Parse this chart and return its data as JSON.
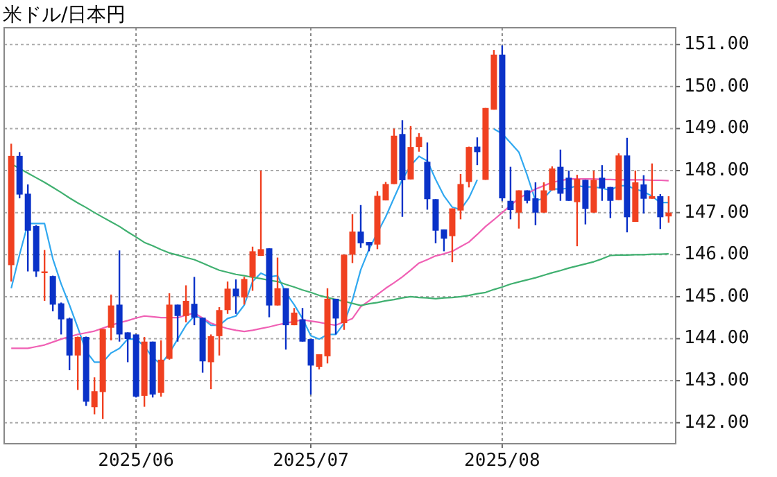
{
  "chart_data": {
    "type": "candlestick",
    "title": "米ドル/日本円",
    "categories": [
      null,
      null,
      null,
      null,
      null,
      null,
      null,
      null,
      null,
      null,
      null,
      null,
      null,
      null,
      null,
      "2025/06",
      null,
      null,
      null,
      null,
      null,
      null,
      null,
      null,
      null,
      null,
      null,
      null,
      null,
      null,
      null,
      null,
      null,
      null,
      null,
      null,
      "2025/07",
      null,
      null,
      null,
      null,
      null,
      null,
      null,
      null,
      null,
      null,
      null,
      null,
      null,
      null,
      null,
      null,
      null,
      null,
      null,
      null,
      null,
      null,
      "2025/08",
      null,
      null,
      null,
      null,
      null,
      null,
      null,
      null,
      null,
      null,
      null,
      null,
      null,
      null,
      null,
      null,
      null,
      null,
      null,
      null
    ],
    "ohlc": [
      [
        145.75,
        148.64,
        145.36,
        148.35
      ],
      [
        148.35,
        148.44,
        147.34,
        147.43
      ],
      [
        147.45,
        147.67,
        145.6,
        146.57
      ],
      [
        146.68,
        146.7,
        145.47,
        145.6
      ],
      [
        145.56,
        146.11,
        144.9,
        145.6
      ],
      [
        145.49,
        145.5,
        144.65,
        144.81
      ],
      [
        144.84,
        144.86,
        144.1,
        144.46
      ],
      [
        144.48,
        144.5,
        143.25,
        143.6
      ],
      [
        143.6,
        144.05,
        142.78,
        144.04
      ],
      [
        144.04,
        144.05,
        142.4,
        142.5
      ],
      [
        142.37,
        143.08,
        142.2,
        142.75
      ],
      [
        142.73,
        144.23,
        142.09,
        144.23
      ],
      [
        144.26,
        145.05,
        143.96,
        144.79
      ],
      [
        144.81,
        146.1,
        143.93,
        144.1
      ],
      [
        144.15,
        144.15,
        143.44,
        143.99
      ],
      [
        144.1,
        144.1,
        142.6,
        142.62
      ],
      [
        142.64,
        144.04,
        142.38,
        143.93
      ],
      [
        143.93,
        143.93,
        142.6,
        142.67
      ],
      [
        142.71,
        143.96,
        142.62,
        143.5
      ],
      [
        143.52,
        145.08,
        143.5,
        144.81
      ],
      [
        144.81,
        144.81,
        143.93,
        144.54
      ],
      [
        144.54,
        145.27,
        144.39,
        144.9
      ],
      [
        144.83,
        145.47,
        144.32,
        144.5
      ],
      [
        144.5,
        144.5,
        143.19,
        143.46
      ],
      [
        143.44,
        144.1,
        142.8,
        144.06
      ],
      [
        144.06,
        144.75,
        143.6,
        144.68
      ],
      [
        144.68,
        145.36,
        144.59,
        145.19
      ],
      [
        145.19,
        145.41,
        144.59,
        145.01
      ],
      [
        144.98,
        145.47,
        144.81,
        145.42
      ],
      [
        145.47,
        146.19,
        145.14,
        146.08
      ],
      [
        145.97,
        148.0,
        145.97,
        146.13
      ],
      [
        146.15,
        146.15,
        144.51,
        144.79
      ],
      [
        144.79,
        145.93,
        144.79,
        145.2
      ],
      [
        145.2,
        145.2,
        143.74,
        144.32
      ],
      [
        144.32,
        144.73,
        144.32,
        144.62
      ],
      [
        144.46,
        144.73,
        143.93,
        143.93
      ],
      [
        143.99,
        143.99,
        142.67,
        143.36
      ],
      [
        143.33,
        143.63,
        143.27,
        143.63
      ],
      [
        143.58,
        145.2,
        143.41,
        144.95
      ],
      [
        144.95,
        144.95,
        144.1,
        144.48
      ],
      [
        144.37,
        146.0,
        144.21,
        146.0
      ],
      [
        146.0,
        146.96,
        145.8,
        146.55
      ],
      [
        146.55,
        147.18,
        146.16,
        146.27
      ],
      [
        146.3,
        146.3,
        146.08,
        146.22
      ],
      [
        146.24,
        147.51,
        146.13,
        147.4
      ],
      [
        147.29,
        147.73,
        147.29,
        147.68
      ],
      [
        147.68,
        149.0,
        147.68,
        148.83
      ],
      [
        148.87,
        149.2,
        146.9,
        147.77
      ],
      [
        147.79,
        149.06,
        147.79,
        148.56
      ],
      [
        148.56,
        148.89,
        148.45,
        148.8
      ],
      [
        148.21,
        148.67,
        147.07,
        147.32
      ],
      [
        147.32,
        147.32,
        146.27,
        146.57
      ],
      [
        146.6,
        146.6,
        146.08,
        146.38
      ],
      [
        146.44,
        147.1,
        145.82,
        147.1
      ],
      [
        147.05,
        147.92,
        146.84,
        147.68
      ],
      [
        147.73,
        148.57,
        147.6,
        148.56
      ],
      [
        148.57,
        148.79,
        148.13,
        148.44
      ],
      [
        147.78,
        149.49,
        147.78,
        149.49
      ],
      [
        149.45,
        150.87,
        149.45,
        150.76
      ],
      [
        150.76,
        150.98,
        147.28,
        147.34
      ],
      [
        147.28,
        148.09,
        146.84,
        147.06
      ],
      [
        147.0,
        147.53,
        146.62,
        147.53
      ],
      [
        147.53,
        147.53,
        147.22,
        147.28
      ],
      [
        147.34,
        147.72,
        146.7,
        147.0
      ],
      [
        147.0,
        147.72,
        147.0,
        147.53
      ],
      [
        147.53,
        148.1,
        147.53,
        148.05
      ],
      [
        148.09,
        148.5,
        147.28,
        147.45
      ],
      [
        147.83,
        148.0,
        147.28,
        147.28
      ],
      [
        147.25,
        147.9,
        146.2,
        147.8
      ],
      [
        147.78,
        147.78,
        146.72,
        147.09
      ],
      [
        147.0,
        148.0,
        147.0,
        147.78
      ],
      [
        147.83,
        148.13,
        147.28,
        147.58
      ],
      [
        147.61,
        147.61,
        146.87,
        147.28
      ],
      [
        147.3,
        148.41,
        147.3,
        148.36
      ],
      [
        148.36,
        148.78,
        146.53,
        146.89
      ],
      [
        146.78,
        148.0,
        146.78,
        147.72
      ],
      [
        147.67,
        147.89,
        146.98,
        147.33
      ],
      [
        147.33,
        148.17,
        147.33,
        147.39
      ],
      [
        147.39,
        147.44,
        146.61,
        146.89
      ],
      [
        146.91,
        147.39,
        146.76,
        147.0
      ]
    ],
    "colors": [
      "#f04020",
      "#0a32c8",
      "#0a32c8",
      "#0a32c8",
      "#f04020",
      "#0a32c8",
      "#0a32c8",
      "#0a32c8",
      "#f04020",
      "#0a32c8",
      "#f04020",
      "#f04020",
      "#f04020",
      "#0a32c8",
      "#0a32c8",
      "#0a32c8",
      "#f04020",
      "#0a32c8",
      "#f04020",
      "#f04020",
      "#0a32c8",
      "#f04020",
      "#0a32c8",
      "#0a32c8",
      "#f04020",
      "#f04020",
      "#f04020",
      "#0a32c8",
      "#f04020",
      "#f04020",
      "#f04020",
      "#0a32c8",
      "#f04020",
      "#0a32c8",
      "#f04020",
      "#0a32c8",
      "#0a32c8",
      "#f04020",
      "#f04020",
      "#0a32c8",
      "#f04020",
      "#f04020",
      "#0a32c8",
      "#0a32c8",
      "#f04020",
      "#f04020",
      "#f04020",
      "#0a32c8",
      "#f04020",
      "#f04020",
      "#0a32c8",
      "#0a32c8",
      "#0a32c8",
      "#f04020",
      "#f04020",
      "#f04020",
      "#0a32c8",
      "#f04020",
      "#f04020",
      "#0a32c8",
      "#0a32c8",
      "#f04020",
      "#0a32c8",
      "#0a32c8",
      "#f04020",
      "#f04020",
      "#0a32c8",
      "#0a32c8",
      "#f04020",
      "#0a32c8",
      "#f04020",
      "#0a32c8",
      "#0a32c8",
      "#f04020",
      "#0a32c8",
      "#f04020",
      "#0a32c8",
      "#f04020",
      "#0a32c8",
      "#f04020"
    ],
    "series": [
      {
        "type": "line",
        "color": "#30a8f0",
        "values": [
          145.2,
          146.0,
          146.74,
          146.74,
          146.74,
          145.9,
          145.3,
          144.8,
          144.26,
          143.7,
          143.44,
          143.44,
          143.66,
          143.77,
          143.99,
          143.99,
          143.82,
          143.55,
          143.39,
          143.66,
          143.99,
          144.32,
          144.54,
          144.48,
          144.32,
          144.32,
          144.48,
          144.54,
          144.8,
          145.36,
          145.56,
          145.47,
          145.5,
          145.09,
          144.81,
          144.48,
          144.07,
          143.99,
          144.1,
          144.1,
          144.37,
          144.92,
          145.64,
          146.13,
          146.52,
          146.9,
          147.35,
          147.79,
          148.12,
          148.34,
          148.23,
          147.79,
          147.4,
          147.13,
          147.07,
          147.35,
          147.78,
          null,
          148.99,
          148.88,
          148.66,
          148.44,
          147.89,
          147.28,
          147.34,
          147.56,
          147.56,
          147.58,
          147.64,
          147.61,
          147.61,
          147.58,
          147.53,
          147.64,
          147.64,
          147.56,
          147.5,
          147.39,
          147.24,
          147.24
        ]
      },
      {
        "type": "line",
        "color": "#f060b4",
        "values": [
          143.77,
          143.77,
          143.77,
          143.81,
          143.85,
          143.92,
          143.99,
          144.05,
          144.1,
          144.14,
          144.18,
          144.25,
          144.32,
          144.38,
          144.43,
          144.49,
          144.54,
          144.52,
          144.5,
          144.5,
          144.5,
          144.56,
          144.61,
          144.49,
          144.37,
          144.3,
          144.24,
          144.2,
          144.17,
          144.2,
          144.24,
          144.28,
          144.33,
          144.37,
          144.41,
          144.45,
          144.42,
          144.39,
          144.35,
          144.32,
          144.4,
          144.48,
          144.76,
          144.9,
          145.05,
          145.2,
          145.33,
          145.47,
          145.63,
          145.8,
          145.88,
          145.97,
          146.02,
          146.08,
          146.19,
          146.3,
          146.48,
          146.67,
          146.83,
          147.0,
          147.17,
          147.34,
          147.45,
          147.56,
          147.64,
          147.72,
          147.76,
          147.8,
          147.8,
          147.8,
          147.8,
          147.79,
          147.79,
          147.78,
          147.78,
          147.78,
          147.78,
          147.77,
          147.77,
          147.76
        ]
      },
      {
        "type": "line",
        "color": "#40b070",
        "values": [
          148.16,
          148.05,
          147.94,
          147.83,
          147.72,
          147.6,
          147.48,
          147.35,
          147.23,
          147.12,
          147.0,
          146.89,
          146.78,
          146.67,
          146.54,
          146.42,
          146.29,
          146.21,
          146.12,
          146.04,
          145.99,
          145.93,
          145.88,
          145.8,
          145.71,
          145.63,
          145.58,
          145.53,
          145.5,
          145.46,
          145.43,
          145.39,
          145.36,
          145.29,
          145.23,
          145.16,
          145.1,
          145.03,
          144.98,
          144.93,
          144.89,
          144.84,
          144.79,
          144.83,
          144.86,
          144.9,
          144.93,
          144.97,
          145.0,
          144.98,
          144.97,
          144.95,
          144.97,
          144.98,
          145.0,
          145.03,
          145.07,
          145.1,
          145.17,
          145.23,
          145.3,
          145.35,
          145.4,
          145.45,
          145.51,
          145.57,
          145.62,
          145.68,
          145.73,
          145.78,
          145.83,
          145.9,
          145.98,
          145.99,
          145.99,
          146.0,
          146.0,
          146.01,
          146.01,
          146.02
        ]
      }
    ],
    "ylim": [
      141.5,
      151.4
    ],
    "yticks": [
      {
        "value": 142,
        "label": "142.00"
      },
      {
        "value": 143,
        "label": "143.00"
      },
      {
        "value": 144,
        "label": "144.00"
      },
      {
        "value": 145,
        "label": "145.00"
      },
      {
        "value": 146,
        "label": "146.00"
      },
      {
        "value": 147,
        "label": "147.00"
      },
      {
        "value": 148,
        "label": "148.00"
      },
      {
        "value": 149,
        "label": "149.00"
      },
      {
        "value": 150,
        "label": "150.00"
      },
      {
        "value": 151,
        "label": "151.00"
      }
    ],
    "grid": true
  }
}
